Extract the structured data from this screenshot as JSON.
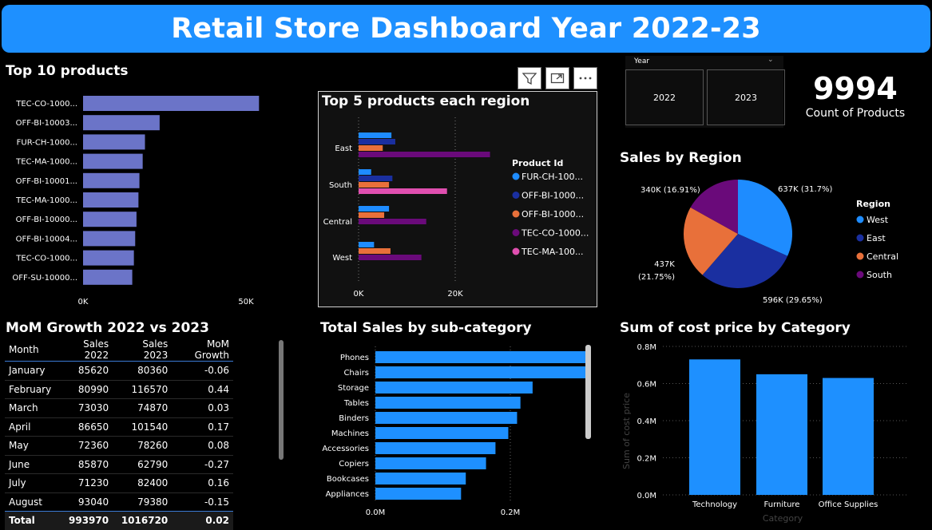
{
  "header": {
    "title": "Retail Store Dashboard Year 2022-23"
  },
  "top10": {
    "title": "Top 10 products"
  },
  "top5": {
    "title": "Top 5 products each region",
    "legend_title": "Product Id"
  },
  "slicer": {
    "label": "Year",
    "options": [
      "2022",
      "2023"
    ]
  },
  "card": {
    "value": "9994",
    "label": "Count of Products"
  },
  "pie": {
    "title": "Sales by Region",
    "legend_title": "Region"
  },
  "mom": {
    "title": "MoM Growth 2022 vs 2023",
    "columns": [
      "Month",
      "Sales 2022",
      "Sales 2023",
      "MoM Growth"
    ],
    "rows": [
      [
        "January",
        "85620",
        "80360",
        "-0.06"
      ],
      [
        "February",
        "80990",
        "116570",
        "0.44"
      ],
      [
        "March",
        "73030",
        "74870",
        "0.03"
      ],
      [
        "April",
        "86650",
        "101540",
        "0.17"
      ],
      [
        "May",
        "72360",
        "78260",
        "0.08"
      ],
      [
        "June",
        "85870",
        "62790",
        "-0.27"
      ],
      [
        "July",
        "71230",
        "82400",
        "0.16"
      ],
      [
        "August",
        "93040",
        "79380",
        "-0.15"
      ]
    ],
    "total": [
      "Total",
      "993970",
      "1016720",
      "0.02"
    ]
  },
  "subcat": {
    "title": "Total Sales by sub-category"
  },
  "costcat": {
    "title": "Sum of cost price by Category"
  },
  "colors": {
    "banner": "#1e90ff",
    "bar_purple": "#6b74c8",
    "bar_blue": "#1e90ff",
    "west": "#1e8cff",
    "east": "#1a2fa0",
    "central": "#e8703a",
    "south": "#6a0a7a",
    "magenta": "#e04fb0"
  },
  "chart_data": [
    {
      "type": "bar",
      "orientation": "horizontal",
      "categories": [
        "TEC-CO-1000...",
        "OFF-BI-10003...",
        "FUR-CH-1000...",
        "TEC-MA-1000...",
        "OFF-BI-10001...",
        "TEC-MA-1000...",
        "OFF-BI-10000...",
        "OFF-BI-10004...",
        "TEC-CO-1000...",
        "OFF-SU-10000..."
      ],
      "values": [
        54000,
        23500,
        19000,
        18300,
        17300,
        17000,
        16400,
        16000,
        15600,
        15100
      ],
      "xticks": [
        "0K",
        "50K"
      ],
      "xlim": [
        0,
        60000
      ]
    },
    {
      "type": "bar",
      "orientation": "horizontal",
      "categories": [
        "East",
        "South",
        "Central",
        "West"
      ],
      "series": [
        {
          "name": "FUR-CH-100...",
          "values": [
            6800,
            2600,
            6300,
            3200
          ]
        },
        {
          "name": "OFF-BI-1000...",
          "values": [
            7600,
            7000,
            0,
            0
          ]
        },
        {
          "name": "OFF-BI-1000...",
          "values": [
            5000,
            6300,
            5300,
            6600
          ]
        },
        {
          "name": "TEC-CO-1000...",
          "values": [
            27200,
            0,
            14000,
            13000
          ]
        },
        {
          "name": "TEC-MA-100...",
          "values": [
            0,
            18300,
            0,
            0
          ]
        }
      ],
      "xticks": [
        "0K",
        "20K"
      ],
      "xlim": [
        0,
        33000
      ]
    },
    {
      "type": "pie",
      "categories": [
        "West",
        "East",
        "Central",
        "South"
      ],
      "values": [
        637000,
        596000,
        437000,
        340000
      ],
      "labels": [
        "637K (31.7%)",
        "596K (29.65%)",
        "437K (21.75%)",
        "340K (16.91%)"
      ],
      "legend": "right"
    },
    {
      "type": "bar",
      "orientation": "horizontal",
      "categories": [
        "Phones",
        "Chairs",
        "Storage",
        "Tables",
        "Binders",
        "Machines",
        "Accessories",
        "Copiers",
        "Bookcases",
        "Appliances"
      ],
      "values": [
        330000,
        328000,
        233000,
        215000,
        210000,
        197000,
        178000,
        164000,
        134000,
        127000
      ],
      "xticks": [
        "0.0M",
        "0.2M"
      ],
      "xlim": [
        0,
        0.36
      ]
    },
    {
      "type": "bar",
      "categories": [
        "Technology",
        "Furniture",
        "Office Supplies"
      ],
      "values": [
        0.73,
        0.65,
        0.63
      ],
      "ylabel": "Sum of cost price",
      "xlabel": "Category",
      "yticks": [
        "0.0M",
        "0.2M",
        "0.4M",
        "0.6M",
        "0.8M"
      ],
      "ylim": [
        0,
        0.8
      ]
    }
  ]
}
